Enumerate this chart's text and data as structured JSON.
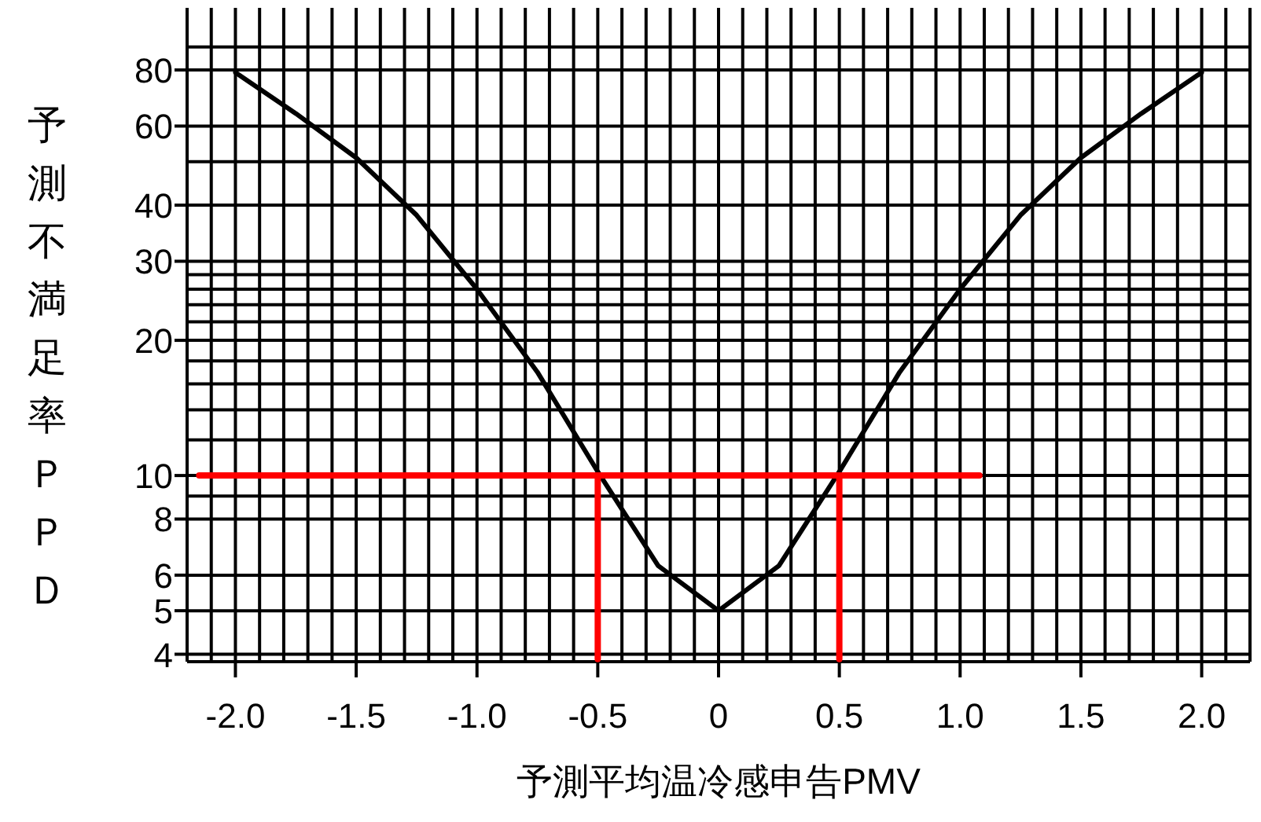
{
  "chart_data": {
    "type": "line",
    "xlabel": "予測平均温冷感申告PMV",
    "ylabel": "予測不満足率ＰＰＤ",
    "log": "y",
    "grid": true,
    "marker": "none",
    "line_style": "solid",
    "xlim": [
      -2.2,
      2.2
    ],
    "ylim": [
      3.85,
      110
    ],
    "xticks": [
      {
        "value": -2.2,
        "label": null
      },
      {
        "value": -2.1,
        "label": null
      },
      {
        "value": -2.0,
        "label": "-2.0"
      },
      {
        "value": -1.9,
        "label": null
      },
      {
        "value": -1.8,
        "label": null
      },
      {
        "value": -1.7,
        "label": null
      },
      {
        "value": -1.6,
        "label": null
      },
      {
        "value": -1.5,
        "label": "-1.5"
      },
      {
        "value": -1.4,
        "label": null
      },
      {
        "value": -1.3,
        "label": null
      },
      {
        "value": -1.2,
        "label": null
      },
      {
        "value": -1.1,
        "label": null
      },
      {
        "value": -1.0,
        "label": "-1.0"
      },
      {
        "value": -0.9,
        "label": null
      },
      {
        "value": -0.8,
        "label": null
      },
      {
        "value": -0.7,
        "label": null
      },
      {
        "value": -0.6,
        "label": null
      },
      {
        "value": -0.5,
        "label": "-0.5"
      },
      {
        "value": -0.4,
        "label": null
      },
      {
        "value": -0.3,
        "label": null
      },
      {
        "value": -0.2,
        "label": null
      },
      {
        "value": -0.1,
        "label": null
      },
      {
        "value": 0,
        "label": "0"
      },
      {
        "value": 0.1,
        "label": null
      },
      {
        "value": 0.2,
        "label": null
      },
      {
        "value": 0.3,
        "label": null
      },
      {
        "value": 0.4,
        "label": null
      },
      {
        "value": 0.5,
        "label": "0.5"
      },
      {
        "value": 0.6,
        "label": null
      },
      {
        "value": 0.7,
        "label": null
      },
      {
        "value": 0.8,
        "label": null
      },
      {
        "value": 0.9,
        "label": null
      },
      {
        "value": 1.0,
        "label": "1.0"
      },
      {
        "value": 1.1,
        "label": null
      },
      {
        "value": 1.2,
        "label": null
      },
      {
        "value": 1.3,
        "label": null
      },
      {
        "value": 1.4,
        "label": null
      },
      {
        "value": 1.5,
        "label": "1.5"
      },
      {
        "value": 1.6,
        "label": null
      },
      {
        "value": 1.7,
        "label": null
      },
      {
        "value": 1.8,
        "label": null
      },
      {
        "value": 1.9,
        "label": null
      },
      {
        "value": 2.0,
        "label": "2.0"
      },
      {
        "value": 2.1,
        "label": null
      },
      {
        "value": 2.2,
        "label": null
      }
    ],
    "yticks": [
      4,
      5,
      6,
      8,
      {
        "value": 9,
        "label": null
      },
      10,
      {
        "value": 12,
        "label": null
      },
      {
        "value": 14,
        "label": null
      },
      {
        "value": 16,
        "label": null
      },
      {
        "value": 18,
        "label": null
      },
      20,
      {
        "value": 22,
        "label": null
      },
      {
        "value": 24,
        "label": null
      },
      {
        "value": 26,
        "label": null
      },
      {
        "value": 28,
        "label": null
      },
      30,
      40,
      {
        "value": 50,
        "label": null
      },
      60,
      80,
      {
        "value": 90,
        "label": null
      }
    ],
    "series": [
      {
        "color": "#000000",
        "x": [
          -2.0,
          -1.75,
          -1.5,
          -1.25,
          -1.0,
          -0.75,
          -0.5,
          -0.25,
          0,
          0.25,
          0.5,
          0.75,
          1.0,
          1.25,
          1.5,
          1.75,
          2.0
        ],
        "values": [
          79,
          64,
          51,
          38,
          26,
          17,
          10.2,
          6.3,
          5,
          6.3,
          10.2,
          17,
          26,
          38,
          51,
          64,
          79
        ]
      },
      {
        "color": "#ff0000",
        "x": [
          -2.15,
          1.08
        ],
        "values": [
          10,
          10
        ]
      },
      {
        "color": "#ff0000",
        "x": [
          -0.5,
          -0.5
        ],
        "values": [
          10,
          3.9
        ]
      },
      {
        "color": "#ff0000",
        "x": [
          0.5,
          0.5
        ],
        "values": [
          10,
          3.9
        ]
      }
    ]
  }
}
